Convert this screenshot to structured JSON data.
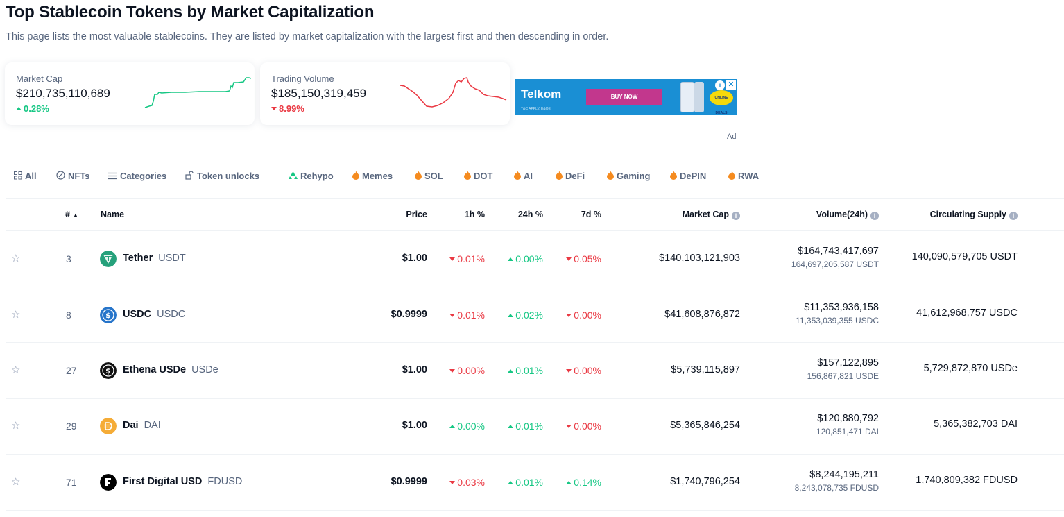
{
  "page": {
    "title": "Top Stablecoin Tokens by Market Capitalization",
    "subtitle": "This page lists the most valuable stablecoins. They are listed by market capitalization with the largest first and then descending in order."
  },
  "stats": {
    "market_cap": {
      "label": "Market Cap",
      "value": "$210,735,110,689",
      "change": "0.28%",
      "direction": "up"
    },
    "trading_volume": {
      "label": "Trading Volume",
      "value": "$185,150,319,459",
      "change": "8.99%",
      "direction": "down"
    }
  },
  "ad": {
    "brand": "Telkom",
    "cta": "BUY NOW",
    "fine_print": "T&C APPLY. E&OE.",
    "badge": "ONLINE DEALS",
    "label": "Ad"
  },
  "filters": [
    "All",
    "NFTs",
    "Categories",
    "Token unlocks",
    "Rehypo",
    "Memes",
    "SOL",
    "DOT",
    "AI",
    "DeFi",
    "Gaming",
    "DePIN",
    "RWA"
  ],
  "table": {
    "headers": {
      "rank": "#",
      "name": "Name",
      "price": "Price",
      "h1": "1h %",
      "h24": "24h %",
      "d7": "7d %",
      "market_cap": "Market Cap",
      "volume": "Volume(24h)",
      "supply": "Circulating Supply"
    },
    "rows": [
      {
        "rank": "3",
        "name": "Tether",
        "symbol": "USDT",
        "price": "$1.00",
        "h1": "0.01%",
        "h1_dir": "down",
        "h24": "0.00%",
        "h24_dir": "up",
        "d7": "0.05%",
        "d7_dir": "down",
        "market_cap": "$140,103,121,903",
        "volume": "$164,743,417,697",
        "volume_native": "164,697,205,587 USDT",
        "supply": "140,090,579,705 USDT",
        "logo_color": "#26a17b"
      },
      {
        "rank": "8",
        "name": "USDC",
        "symbol": "USDC",
        "price": "$0.9999",
        "h1": "0.01%",
        "h1_dir": "down",
        "h24": "0.02%",
        "h24_dir": "up",
        "d7": "0.00%",
        "d7_dir": "down",
        "market_cap": "$41,608,876,872",
        "volume": "$11,353,936,158",
        "volume_native": "11,353,039,355 USDC",
        "supply": "41,612,968,757 USDC",
        "logo_color": "#2775ca"
      },
      {
        "rank": "27",
        "name": "Ethena USDe",
        "symbol": "USDe",
        "price": "$1.00",
        "h1": "0.00%",
        "h1_dir": "down",
        "h24": "0.01%",
        "h24_dir": "up",
        "d7": "0.00%",
        "d7_dir": "down",
        "market_cap": "$5,739,115,897",
        "volume": "$157,122,895",
        "volume_native": "156,867,821 USDE",
        "supply": "5,729,872,870 USDe",
        "logo_color": "#111111"
      },
      {
        "rank": "29",
        "name": "Dai",
        "symbol": "DAI",
        "price": "$1.00",
        "h1": "0.00%",
        "h1_dir": "up",
        "h24": "0.01%",
        "h24_dir": "up",
        "d7": "0.00%",
        "d7_dir": "down",
        "market_cap": "$5,365,846,254",
        "volume": "$120,880,792",
        "volume_native": "120,851,471 DAI",
        "supply": "5,365,382,703 DAI",
        "logo_color": "#f5ac37"
      },
      {
        "rank": "71",
        "name": "First Digital USD",
        "symbol": "FDUSD",
        "price": "$0.9999",
        "h1": "0.03%",
        "h1_dir": "down",
        "h24": "0.01%",
        "h24_dir": "up",
        "d7": "0.14%",
        "d7_dir": "up",
        "market_cap": "$1,740,796,254",
        "volume": "$8,244,195,211",
        "volume_native": "8,243,078,735 FDUSD",
        "supply": "1,740,809,382 FDUSD",
        "logo_color": "#000000"
      }
    ]
  },
  "colors": {
    "up": "#16c784",
    "down": "#ea3943",
    "text": "#0d1421",
    "muted": "#58667e"
  }
}
